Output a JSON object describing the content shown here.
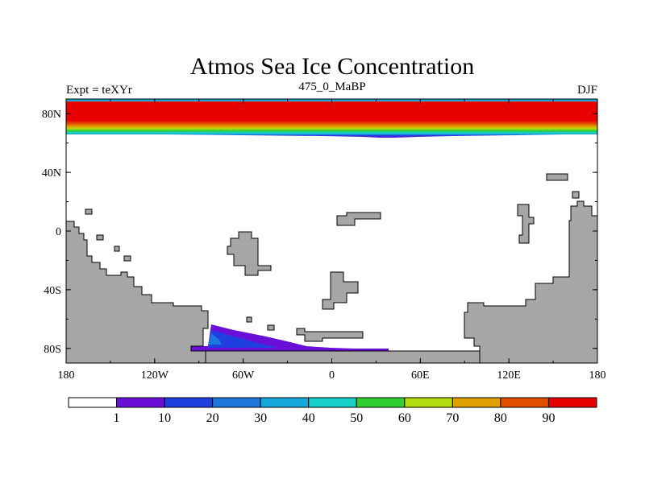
{
  "title": "Atmos Sea Ice Concentration",
  "left_string": "Expt = teXYr",
  "center_string": "475_0_MaBP",
  "right_string": "DJF",
  "map": {
    "lat_range": [
      -90,
      90
    ],
    "lon_range": [
      -180,
      180
    ],
    "lat_ticks": [
      "80N",
      "40N",
      "0",
      "40S",
      "80S"
    ],
    "lon_ticks": [
      "180",
      "120W",
      "60W",
      "0",
      "60E",
      "120E",
      "180"
    ],
    "land_color": "#a6a6a6"
  },
  "colorbar": {
    "colors": [
      "#ffffff",
      "#6a0fd8",
      "#1f3fe0",
      "#1f78dc",
      "#16a9dc",
      "#16cfc6",
      "#2ecf2e",
      "#b2dc10",
      "#e0a000",
      "#e05000",
      "#e60000"
    ],
    "labels": [
      "1",
      "10",
      "20",
      "30",
      "40",
      "50",
      "60",
      "70",
      "80",
      "90"
    ]
  }
}
